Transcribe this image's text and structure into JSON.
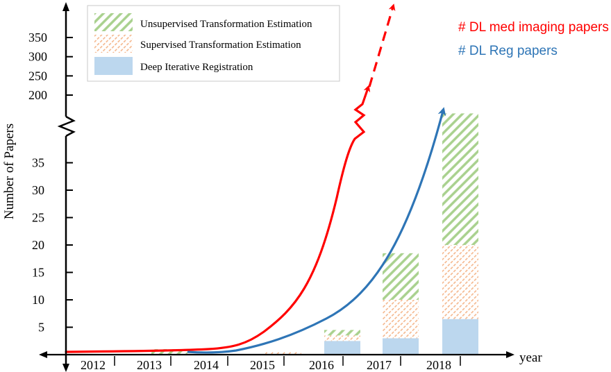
{
  "chart_data": {
    "type": "bar",
    "xlabel": "year",
    "ylabel": "Number of Papers",
    "categories": [
      "2012",
      "2013",
      "2014",
      "2015",
      "2016",
      "2017",
      "2018"
    ],
    "y_ticks_lower": [
      5,
      10,
      15,
      20,
      25,
      30,
      35
    ],
    "y_ticks_upper": [
      200,
      250,
      300,
      350
    ],
    "axis_break": true,
    "stacked": true,
    "series": [
      {
        "name": "Deep Iterative Registration",
        "values": [
          0,
          0,
          0,
          0,
          2.5,
          3,
          6.5
        ],
        "color": "#bcd7ee",
        "pattern": "solid"
      },
      {
        "name": "Supervised Transformation Estimation",
        "values": [
          0,
          0,
          0,
          0.5,
          1,
          7,
          13.5
        ],
        "color": "#f4b183",
        "pattern": "hatch"
      },
      {
        "name": "Unsupervised Transformation Estimation",
        "values": [
          0,
          1,
          0,
          0,
          1,
          8.5,
          24
        ],
        "color": "#a9d18e",
        "pattern": "hatch"
      }
    ],
    "legend_position": "top-left",
    "trend_lines": [
      {
        "name": "# DL med imaging papers",
        "color": "#ff0000",
        "style": "solid-then-dashed",
        "note_continues_above_break": true
      },
      {
        "name": "# DL Reg papers",
        "color": "#2e75b6",
        "style": "solid"
      }
    ]
  },
  "colors": {
    "axis": "#000000",
    "unsupervised": "#a9d18e",
    "supervised": "#f4b183",
    "deep_iterative": "#bcd7ee",
    "med_imaging_line": "#ff0000",
    "reg_line": "#2e75b6"
  }
}
